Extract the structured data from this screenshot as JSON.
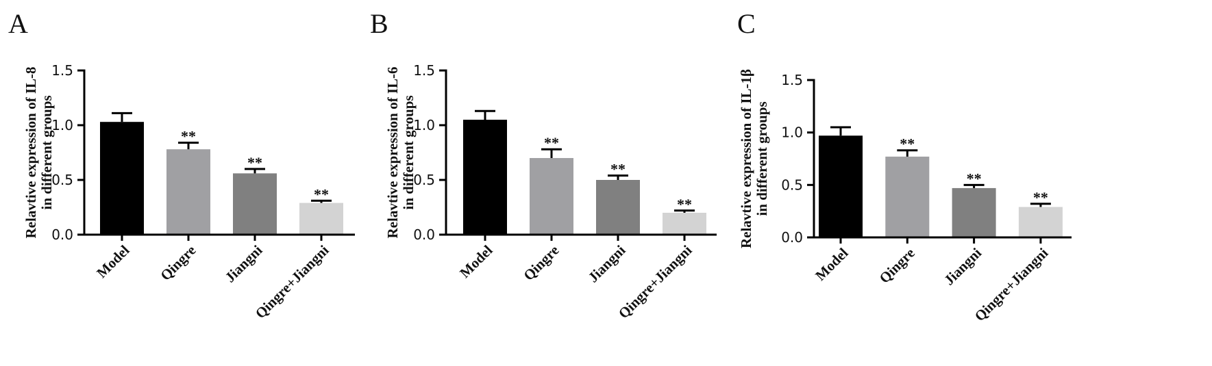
{
  "chart_data": [
    {
      "panel": "A",
      "type": "bar",
      "ylabel_line1": "Relavtive expression of IL-8",
      "ylabel_line2": "in different groups",
      "ylim": [
        0,
        1.5
      ],
      "yticks": [
        "0.0",
        "0.5",
        "1.0",
        "1.5"
      ],
      "categories": [
        "Model",
        "Qingre",
        "Jiangni",
        "Qingre+Jiangni"
      ],
      "values": [
        1.03,
        0.78,
        0.56,
        0.29
      ],
      "errors": [
        0.08,
        0.06,
        0.04,
        0.02
      ],
      "significance": [
        "",
        "**",
        "**",
        "**"
      ],
      "colors": [
        "#000000",
        "#a0a0a3",
        "#808080",
        "#d3d3d3"
      ]
    },
    {
      "panel": "B",
      "type": "bar",
      "ylabel_line1": "Relavtive expression of IL-6",
      "ylabel_line2": "in different groups",
      "ylim": [
        0,
        1.5
      ],
      "yticks": [
        "0.0",
        "0.5",
        "1.0",
        "1.5"
      ],
      "categories": [
        "Model",
        "Qingre",
        "Jiangni",
        "Qingre+Jiangni"
      ],
      "values": [
        1.05,
        0.7,
        0.5,
        0.2
      ],
      "errors": [
        0.08,
        0.08,
        0.04,
        0.02
      ],
      "significance": [
        "",
        "**",
        "**",
        "**"
      ],
      "colors": [
        "#000000",
        "#a0a0a3",
        "#808080",
        "#d3d3d3"
      ]
    },
    {
      "panel": "C",
      "type": "bar",
      "ylabel_line1": "Relavtive expression of IL-1β",
      "ylabel_line2": "in different groups",
      "ylim": [
        0,
        1.5
      ],
      "yticks": [
        "0.0",
        "0.5",
        "1.0",
        "1.5"
      ],
      "categories": [
        "Model",
        "Qingre",
        "Jiangni",
        "Qingre+Jiangni"
      ],
      "values": [
        0.97,
        0.77,
        0.47,
        0.29
      ],
      "errors": [
        0.08,
        0.06,
        0.03,
        0.03
      ],
      "significance": [
        "",
        "**",
        "**",
        "**"
      ],
      "colors": [
        "#000000",
        "#a0a0a3",
        "#808080",
        "#d3d3d3"
      ]
    }
  ]
}
